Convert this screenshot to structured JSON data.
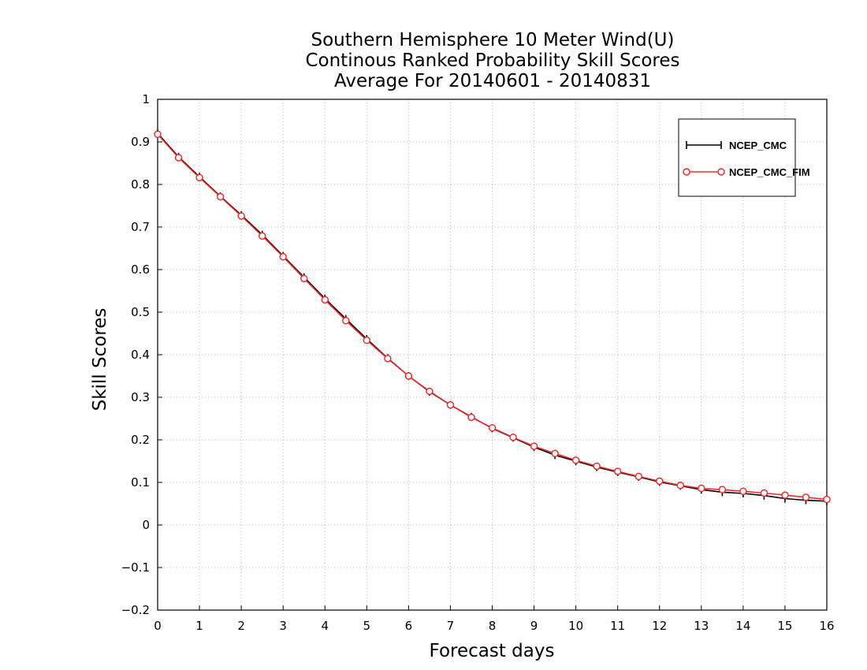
{
  "chart_data": {
    "type": "line",
    "title": [
      "Southern Hemisphere 10 Meter Wind(U)",
      "Continous Ranked Probability Skill Scores",
      "Average For 20140601 - 20140831"
    ],
    "xlabel": "Forecast days",
    "ylabel": "Skill Scores",
    "xlim": [
      0,
      16
    ],
    "ylim": [
      -0.2,
      1
    ],
    "xticks": [
      0,
      1,
      2,
      3,
      4,
      5,
      6,
      7,
      8,
      9,
      10,
      11,
      12,
      13,
      14,
      15,
      16
    ],
    "yticks": [
      -0.2,
      -0.1,
      0,
      0.1,
      0.2,
      0.3,
      0.4,
      0.5,
      0.6,
      0.7,
      0.8,
      0.9,
      1
    ],
    "ytick_labels": [
      "−0.2",
      "−0.1",
      "0",
      "0.1",
      "0.2",
      "0.3",
      "0.4",
      "0.5",
      "0.6",
      "0.7",
      "0.8",
      "0.9",
      "1"
    ],
    "grid": true,
    "legend_position": "top-right",
    "x": [
      0,
      0.5,
      1,
      1.5,
      2,
      2.5,
      3,
      3.5,
      4,
      4.5,
      5,
      5.5,
      6,
      6.5,
      7,
      7.5,
      8,
      8.5,
      9,
      9.5,
      10,
      10.5,
      11,
      11.5,
      12,
      12.5,
      13,
      13.5,
      14,
      14.5,
      15,
      15.5,
      16
    ],
    "series": [
      {
        "name": "NCEP_CMC",
        "color": "#000000",
        "marker": "plus",
        "values": [
          0.92,
          0.865,
          0.818,
          0.772,
          0.728,
          0.682,
          0.632,
          0.582,
          0.532,
          0.484,
          0.437,
          0.392,
          0.35,
          0.313,
          0.282,
          0.254,
          0.227,
          0.205,
          0.183,
          0.164,
          0.15,
          0.136,
          0.124,
          0.113,
          0.101,
          0.092,
          0.083,
          0.077,
          0.074,
          0.069,
          0.062,
          0.058,
          0.056
        ]
      },
      {
        "name": "NCEP_CMC_FIM",
        "color": "#e8302e",
        "marker": "circle",
        "values": [
          0.918,
          0.863,
          0.816,
          0.771,
          0.726,
          0.679,
          0.63,
          0.579,
          0.529,
          0.48,
          0.434,
          0.391,
          0.35,
          0.314,
          0.282,
          0.253,
          0.228,
          0.206,
          0.185,
          0.168,
          0.152,
          0.138,
          0.126,
          0.114,
          0.103,
          0.093,
          0.086,
          0.083,
          0.079,
          0.075,
          0.07,
          0.065,
          0.06
        ]
      }
    ]
  }
}
